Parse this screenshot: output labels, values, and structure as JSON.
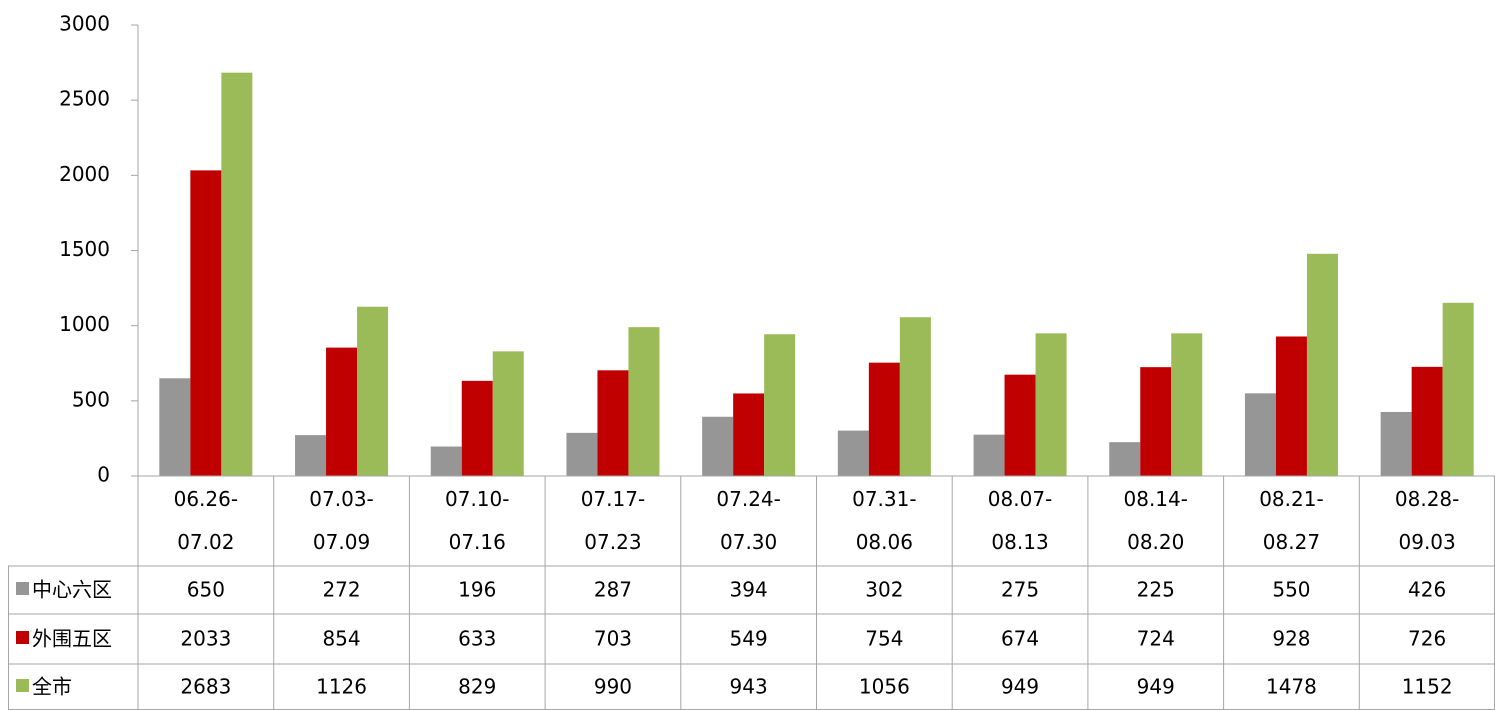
{
  "chart_data": {
    "type": "bar",
    "categories": [
      "06.26-07.02",
      "07.03-07.09",
      "07.10-07.16",
      "07.17-07.23",
      "07.24-07.30",
      "07.31-08.06",
      "08.07-08.13",
      "08.14-08.20",
      "08.21-08.27",
      "08.28-09.03"
    ],
    "series": [
      {
        "name": "中心六区",
        "color": "#969696",
        "values": [
          650,
          272,
          196,
          287,
          394,
          302,
          275,
          225,
          550,
          426
        ]
      },
      {
        "name": "外围五区",
        "color": "#c00000",
        "values": [
          2033,
          854,
          633,
          703,
          549,
          754,
          674,
          724,
          928,
          726
        ]
      },
      {
        "name": "全市",
        "color": "#9bbb59",
        "values": [
          2683,
          1126,
          829,
          990,
          943,
          1056,
          949,
          949,
          1478,
          1152
        ]
      }
    ],
    "ylim": [
      0,
      3000
    ],
    "yticks": [
      0,
      500,
      1000,
      1500,
      2000,
      2500,
      3000
    ],
    "grid": false,
    "legend": "table"
  }
}
